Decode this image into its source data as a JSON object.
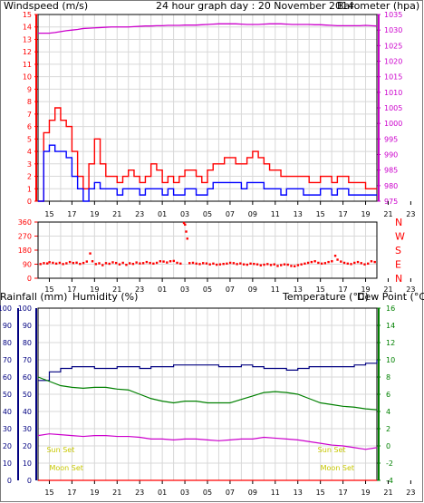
{
  "title": "24 hour graph day : 20 November 2014",
  "colors": {
    "wind": "#ff0000",
    "gust": "#0000ff",
    "baro": "#cc00cc",
    "dir": "#ff0000",
    "rain": "#ff0000",
    "humidity": "#000080",
    "temperature": "#008000",
    "dewpoint": "#cc00cc",
    "sunmoon": "#c8c800",
    "grid": "#d8d8d8"
  },
  "x_ticks": [
    "15",
    "17",
    "19",
    "21",
    "23",
    "01",
    "03",
    "05",
    "07",
    "09",
    "11",
    "13",
    "15",
    "17",
    "19",
    "21",
    "23"
  ],
  "chart_data": [
    {
      "type": "line",
      "name": "wind-barometer",
      "left_label": "Windspeed (m/s)",
      "right_label": "Barometer (hpa)",
      "left_ticks": [
        "0",
        "1",
        "2",
        "3",
        "4",
        "5",
        "6",
        "7",
        "8",
        "9",
        "10",
        "11",
        "12",
        "13",
        "14",
        "15"
      ],
      "right_ticks": [
        "975",
        "980",
        "985",
        "990",
        "995",
        "1000",
        "1005",
        "1010",
        "1015",
        "1020",
        "1025",
        "1030",
        "1035"
      ],
      "ylim_left": [
        0,
        15
      ],
      "ylim_right": [
        975,
        1035
      ],
      "x_hours": [
        14,
        14.5,
        15,
        15.5,
        16,
        16.5,
        17,
        17.5,
        18,
        18.5,
        19,
        19.5,
        20,
        20.5,
        21,
        21.5,
        22,
        22.5,
        23,
        23.5,
        24,
        24.5,
        25,
        25.5,
        26,
        26.5,
        27,
        27.5,
        28,
        28.5,
        29,
        29.5,
        30,
        30.5,
        31,
        31.5,
        32,
        32.5,
        33,
        33.5,
        34,
        34.5,
        35,
        35.5,
        36,
        36.5,
        37,
        37.5,
        38,
        38.5,
        39,
        39.5,
        40,
        40.5,
        41,
        41.5,
        42,
        42.5,
        43,
        43.5,
        44
      ],
      "series": [
        {
          "values": [
            0,
            5.5,
            6.5,
            7.5,
            6.5,
            6,
            4,
            2,
            1,
            3,
            5,
            3,
            2,
            2,
            1.5,
            2,
            2.5,
            2,
            1.5,
            2,
            3,
            2.5,
            1.5,
            2,
            1.5,
            2,
            2.5,
            2.5,
            2,
            1.5,
            2.5,
            3,
            3,
            3.5,
            3.5,
            3,
            3,
            3.5,
            4,
            3.5,
            3,
            2.5,
            2.5,
            2,
            2,
            2,
            2,
            2,
            1.5,
            1.5,
            2,
            2,
            1.5,
            2,
            2,
            1.5,
            1.5,
            1.5,
            1,
            1,
            1
          ]
        },
        {
          "values": [
            0,
            4,
            4.5,
            4,
            4,
            3.5,
            2,
            1,
            0,
            1,
            1.5,
            1,
            1,
            1,
            0.5,
            1,
            1,
            1,
            0.5,
            1,
            1,
            1,
            0.5,
            1,
            0.5,
            0.5,
            1,
            1,
            0.5,
            0.5,
            1,
            1.5,
            1.5,
            1.5,
            1.5,
            1.5,
            1,
            1.5,
            1.5,
            1.5,
            1,
            1,
            1,
            0.5,
            1,
            1,
            1,
            0.5,
            0.5,
            0.5,
            1,
            1,
            0.5,
            1,
            1,
            0.5,
            0.5,
            0.5,
            0.5,
            0.5,
            0.5
          ]
        },
        {
          "values": [
            1029,
            1029,
            1029,
            1029.2,
            1029.5,
            1029.8,
            1030,
            1030.2,
            1030.5,
            1030.6,
            1030.7,
            1030.8,
            1030.9,
            1031,
            1031,
            1031,
            1031,
            1031.1,
            1031.2,
            1031.3,
            1031.3,
            1031.4,
            1031.4,
            1031.5,
            1031.5,
            1031.5,
            1031.6,
            1031.6,
            1031.6,
            1031.7,
            1031.8,
            1031.9,
            1032,
            1032,
            1032,
            1032,
            1031.9,
            1031.8,
            1031.8,
            1031.8,
            1031.9,
            1032,
            1032,
            1032,
            1031.9,
            1031.8,
            1031.8,
            1031.8,
            1031.8,
            1031.7,
            1031.7,
            1031.6,
            1031.5,
            1031.4,
            1031.4,
            1031.4,
            1031.4,
            1031.4,
            1031.5,
            1031.4,
            1031.3
          ]
        }
      ]
    },
    {
      "type": "scatter",
      "name": "wind-direction",
      "y_ticks": [
        "360",
        "270",
        "180",
        "90",
        "0"
      ],
      "compass": [
        "N",
        "W",
        "S",
        "E",
        "N"
      ],
      "ylim": [
        0,
        360
      ],
      "points": [
        [
          14.2,
          92
        ],
        [
          14.5,
          98
        ],
        [
          14.8,
          96
        ],
        [
          15,
          104
        ],
        [
          15.3,
          100
        ],
        [
          15.6,
          95
        ],
        [
          15.9,
          100
        ],
        [
          16.2,
          92
        ],
        [
          16.5,
          97
        ],
        [
          16.8,
          105
        ],
        [
          17.1,
          99
        ],
        [
          17.4,
          101
        ],
        [
          17.7,
          93
        ],
        [
          18,
          99
        ],
        [
          18.3,
          108
        ],
        [
          18.6,
          160
        ],
        [
          18.8,
          110
        ],
        [
          19.1,
          92
        ],
        [
          19.4,
          97
        ],
        [
          19.7,
          85
        ],
        [
          20,
          98
        ],
        [
          20.3,
          94
        ],
        [
          20.6,
          103
        ],
        [
          20.9,
          99
        ],
        [
          21.2,
          90
        ],
        [
          21.5,
          100
        ],
        [
          21.8,
          87
        ],
        [
          22.1,
          97
        ],
        [
          22.4,
          93
        ],
        [
          22.7,
          102
        ],
        [
          23,
          96
        ],
        [
          23.3,
          98
        ],
        [
          23.6,
          105
        ],
        [
          23.9,
          99
        ],
        [
          24.2,
          95
        ],
        [
          24.5,
          100
        ],
        [
          24.8,
          110
        ],
        [
          25.1,
          108
        ],
        [
          25.4,
          102
        ],
        [
          25.7,
          110
        ],
        [
          26,
          112
        ],
        [
          26.3,
          100
        ],
        [
          26.6,
          95
        ],
        [
          26.9,
          355
        ],
        [
          27,
          345
        ],
        [
          27.1,
          300
        ],
        [
          27.2,
          255
        ],
        [
          27.4,
          98
        ],
        [
          27.7,
          100
        ],
        [
          28,
          95
        ],
        [
          28.3,
          92
        ],
        [
          28.6,
          98
        ],
        [
          28.9,
          96
        ],
        [
          29.2,
          90
        ],
        [
          29.5,
          95
        ],
        [
          29.8,
          88
        ],
        [
          30.1,
          90
        ],
        [
          30.4,
          93
        ],
        [
          30.7,
          95
        ],
        [
          31,
          100
        ],
        [
          31.3,
          98
        ],
        [
          31.6,
          92
        ],
        [
          31.9,
          96
        ],
        [
          32.2,
          90
        ],
        [
          32.5,
          88
        ],
        [
          32.8,
          95
        ],
        [
          33.1,
          93
        ],
        [
          33.4,
          90
        ],
        [
          33.7,
          84
        ],
        [
          34,
          88
        ],
        [
          34.3,
          92
        ],
        [
          34.6,
          86
        ],
        [
          34.9,
          90
        ],
        [
          35.2,
          80
        ],
        [
          35.5,
          85
        ],
        [
          35.8,
          90
        ],
        [
          36.1,
          88
        ],
        [
          36.4,
          80
        ],
        [
          36.7,
          78
        ],
        [
          37,
          85
        ],
        [
          37.3,
          90
        ],
        [
          37.6,
          95
        ],
        [
          37.9,
          100
        ],
        [
          38.2,
          105
        ],
        [
          38.5,
          110
        ],
        [
          38.8,
          100
        ],
        [
          39.1,
          95
        ],
        [
          39.4,
          98
        ],
        [
          39.7,
          105
        ],
        [
          40,
          110
        ],
        [
          40.3,
          145
        ],
        [
          40.5,
          120
        ],
        [
          40.8,
          108
        ],
        [
          41.1,
          100
        ],
        [
          41.4,
          95
        ],
        [
          41.7,
          92
        ],
        [
          42,
          100
        ],
        [
          42.3,
          105
        ],
        [
          42.6,
          98
        ],
        [
          42.9,
          90
        ],
        [
          43.2,
          95
        ],
        [
          43.5,
          110
        ],
        [
          43.8,
          105
        ]
      ]
    },
    {
      "type": "line",
      "name": "rain-humidity-temperature",
      "left_labels": [
        "Rainfall (mm)",
        "Humidity (%)"
      ],
      "right_labels": [
        "Temperature (°C)",
        "Dew Point (°C)"
      ],
      "left_ticks": [
        "0",
        "10",
        "20",
        "30",
        "40",
        "50",
        "60",
        "70",
        "80",
        "90",
        "100"
      ],
      "right_ticks": [
        "-4",
        "-2",
        "0",
        "2",
        "4",
        "6",
        "8",
        "10",
        "12",
        "14",
        "16"
      ],
      "ylim_left": [
        0,
        100
      ],
      "ylim_right": [
        -4,
        16
      ],
      "x_hours": [
        14,
        15,
        16,
        17,
        18,
        19,
        20,
        21,
        22,
        23,
        24,
        25,
        26,
        27,
        28,
        29,
        30,
        31,
        32,
        33,
        34,
        35,
        36,
        37,
        38,
        39,
        40,
        41,
        42,
        43,
        44
      ],
      "series": [
        {
          "name": "Humidity",
          "values": [
            58,
            63,
            65,
            66,
            66,
            65,
            65,
            66,
            66,
            65,
            66,
            66,
            67,
            67,
            67,
            67,
            66,
            66,
            67,
            66,
            65,
            65,
            64,
            65,
            66,
            66,
            66,
            66,
            67,
            68,
            70
          ]
        },
        {
          "name": "Temperature",
          "values": [
            8,
            7.5,
            7,
            6.8,
            6.7,
            6.8,
            6.8,
            6.6,
            6.5,
            6,
            5.5,
            5.2,
            5,
            5.2,
            5.2,
            5,
            5,
            5,
            5.4,
            5.8,
            6.2,
            6.3,
            6.2,
            6,
            5.5,
            5,
            4.8,
            4.6,
            4.5,
            4.3,
            4.2
          ]
        },
        {
          "name": "Dew Point",
          "values": [
            1.2,
            1.4,
            1.3,
            1.2,
            1.1,
            1.2,
            1.2,
            1.1,
            1.1,
            1,
            0.8,
            0.8,
            0.7,
            0.8,
            0.8,
            0.7,
            0.6,
            0.7,
            0.8,
            0.8,
            1,
            0.9,
            0.8,
            0.7,
            0.5,
            0.3,
            0.1,
            0,
            -0.2,
            -0.4,
            -0.2
          ]
        },
        {
          "name": "Rainfall",
          "values": [
            0,
            0,
            0,
            0,
            0,
            0,
            0,
            0,
            0,
            0,
            0,
            0,
            0,
            0,
            0,
            0,
            0,
            0,
            0,
            0,
            0,
            0,
            0,
            0,
            0,
            0,
            0,
            0,
            0,
            0,
            0
          ]
        }
      ],
      "annotations": [
        {
          "label": "Sun Set",
          "x_hour": 16
        },
        {
          "label": "Moon Set",
          "x_hour": 16.5
        },
        {
          "label": "Sun Set",
          "x_hour": 40
        },
        {
          "label": "Moon Set",
          "x_hour": 40.5
        }
      ]
    }
  ]
}
